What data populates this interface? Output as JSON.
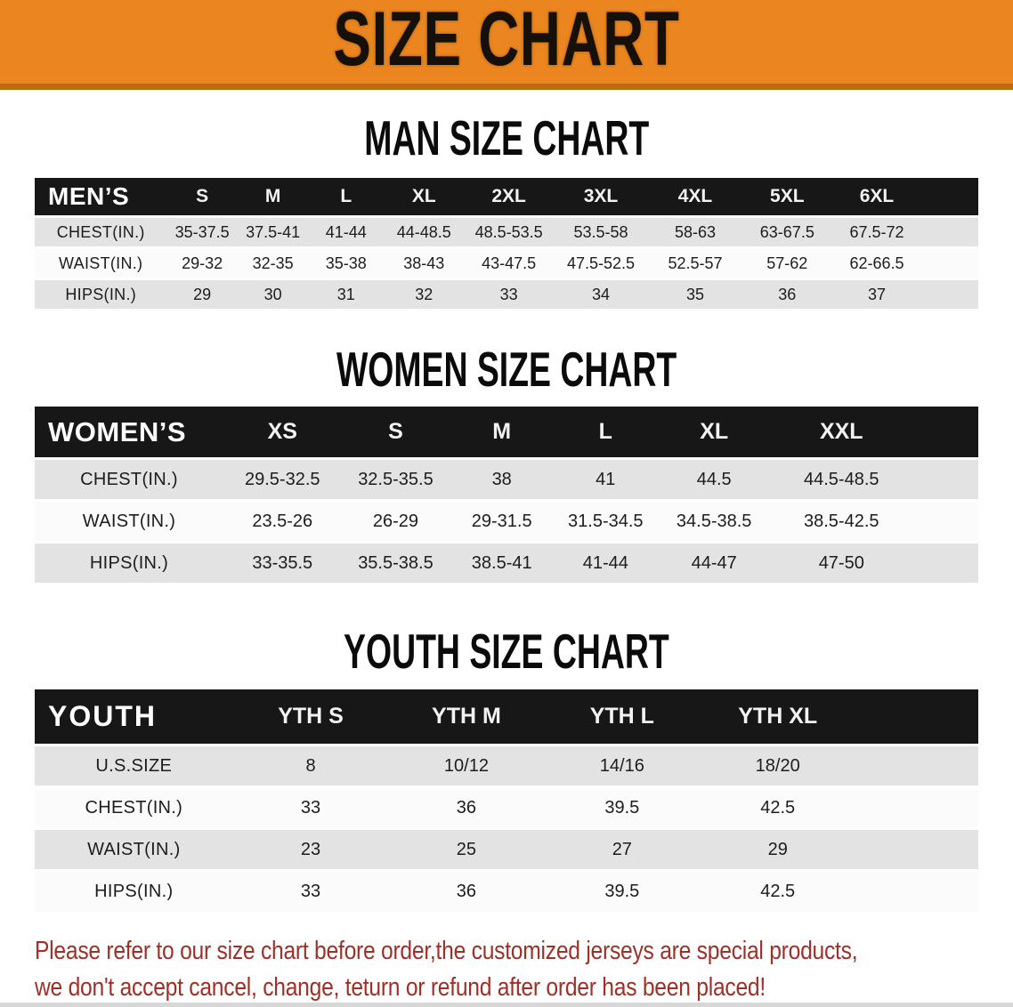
{
  "banner": {
    "title": "SIZE CHART",
    "bg_color": "#ea851f",
    "edge_color": "#bd6a14",
    "text_color": "#16100a"
  },
  "sections": [
    {
      "heading": "MAN SIZE CHART",
      "header_label": "MEN’S",
      "columns": [
        "S",
        "M",
        "L",
        "XL",
        "2XL",
        "3XL",
        "4XL",
        "5XL",
        "6XL"
      ],
      "rows": [
        {
          "label": "CHEST(IN.)",
          "values": [
            "35-37.5",
            "37.5-41",
            "41-44",
            "44-48.5",
            "48.5-53.5",
            "53.5-58",
            "58-63",
            "63-67.5",
            "67.5-72"
          ]
        },
        {
          "label": "WAIST(IN.)",
          "values": [
            "29-32",
            "32-35",
            "35-38",
            "38-43",
            "43-47.5",
            "47.5-52.5",
            "52.5-57",
            "57-62",
            "62-66.5"
          ]
        },
        {
          "label": "HIPS(IN.)",
          "values": [
            "29",
            "30",
            "31",
            "32",
            "33",
            "34",
            "35",
            "36",
            "37"
          ]
        }
      ]
    },
    {
      "heading": "WOMEN SIZE CHART",
      "header_label": "WOMEN’S",
      "columns": [
        "XS",
        "S",
        "M",
        "L",
        "XL",
        "XXL"
      ],
      "rows": [
        {
          "label": "CHEST(IN.)",
          "values": [
            "29.5-32.5",
            "32.5-35.5",
            "38",
            "41",
            "44.5",
            "44.5-48.5"
          ]
        },
        {
          "label": "WAIST(IN.)",
          "values": [
            "23.5-26",
            "26-29",
            "29-31.5",
            "31.5-34.5",
            "34.5-38.5",
            "38.5-42.5"
          ]
        },
        {
          "label": "HIPS(IN.)",
          "values": [
            "33-35.5",
            "35.5-38.5",
            "38.5-41",
            "41-44",
            "44-47",
            "47-50"
          ]
        }
      ]
    },
    {
      "heading": "YOUTH SIZE CHART",
      "header_label": "YOUTH",
      "columns": [
        "YTH S",
        "YTH M",
        "YTH L",
        "YTH XL"
      ],
      "rows": [
        {
          "label": "U.S.SIZE",
          "values": [
            "8",
            "10/12",
            "14/16",
            "18/20"
          ]
        },
        {
          "label": "CHEST(IN.)",
          "values": [
            "33",
            "36",
            "39.5",
            "42.5"
          ]
        },
        {
          "label": "WAIST(IN.)",
          "values": [
            "23",
            "25",
            "27",
            "29"
          ]
        },
        {
          "label": "HIPS(IN.)",
          "values": [
            "33",
            "36",
            "39.5",
            "42.5"
          ]
        }
      ]
    }
  ],
  "table_style": {
    "header_bg": "#171717",
    "row_gray": "#e3e3e4",
    "row_white": "#fbfbfb"
  },
  "disclaimer": {
    "line1": "Please refer to our size chart before order,the customized jerseys are special products,",
    "line2": "we don't accept cancel, change, teturn or refund after order has been placed!",
    "color": "#9e3027"
  }
}
